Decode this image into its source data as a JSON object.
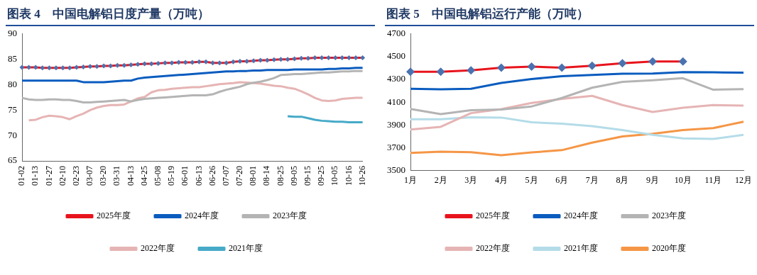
{
  "chart_data": [
    {
      "type": "line",
      "title": "图表 4　中国电解铝日度产量（万吨）",
      "categories": [
        "01-02",
        null,
        "01-13",
        null,
        "01-27",
        null,
        "02-10",
        null,
        "02-23",
        null,
        "03-07",
        null,
        "03-20",
        null,
        "03-31",
        null,
        "04-13",
        null,
        "04-25",
        null,
        "05-08",
        null,
        "05-19",
        null,
        "06-01",
        null,
        "06-13",
        null,
        "06-26",
        null,
        "07-07",
        null,
        "07-20",
        null,
        "08-01",
        null,
        "08-14",
        null,
        "08-25",
        null,
        "09-05",
        null,
        "09-15",
        null,
        "09-25",
        null,
        "10-05",
        null,
        "10-16",
        null,
        "10-26"
      ],
      "series": [
        {
          "name": "2025年度",
          "color": "#e8141c",
          "marker": "diamond",
          "colors": [
            "#4a72b0",
            "#4a72b0",
            "#4a72b0",
            "#4a72b0",
            "#4a72b0",
            "#4a72b0",
            "#4a72b0",
            "#4a72b0",
            "#4a72b0",
            "#4a72b0",
            "#4a72b0",
            "#4a72b0",
            "#4a72b0",
            "#4a72b0",
            "#4a72b0",
            "#4a72b0",
            "#4a72b0",
            "#4a72b0",
            "#4a72b0",
            "#4a72b0",
            "#4a72b0",
            "#4a72b0",
            "#4a72b0",
            "#4a72b0",
            "#4a72b0",
            "#4a72b0",
            "#4a72b0",
            "#4a72b0",
            "#4a72b0",
            "#4a72b0",
            "#4a72b0",
            "#4a72b0",
            "#4a72b0",
            "#4a72b0",
            "#4a72b0",
            "#4a72b0",
            "#4a72b0",
            "#4a72b0",
            "#4a72b0",
            "#4a72b0",
            "#4a72b0",
            "#4a72b0",
            "#4a72b0",
            "#4a72b0",
            "#4a72b0",
            "#4a72b0",
            "#4a72b0",
            "#4a72b0",
            "#4a72b0",
            "#4a72b0",
            "#4a72b0"
          ],
          "values": [
            83.4,
            83.4,
            83.4,
            83.3,
            83.3,
            83.3,
            83.3,
            83.3,
            83.4,
            83.5,
            83.6,
            83.6,
            83.7,
            83.7,
            83.8,
            83.8,
            83.9,
            84.0,
            84.1,
            84.1,
            84.2,
            84.3,
            84.3,
            84.4,
            84.4,
            84.4,
            84.5,
            84.5,
            84.3,
            84.3,
            84.3,
            84.5,
            84.6,
            84.6,
            84.7,
            84.8,
            84.8,
            84.9,
            85.0,
            85.0,
            85.1,
            85.2,
            85.2,
            85.3,
            85.3,
            85.3,
            85.3,
            85.3,
            85.3,
            85.3,
            85.3
          ]
        },
        {
          "name": "2024年度",
          "color": "#0a5cbf",
          "values": [
            80.8,
            80.8,
            80.8,
            80.8,
            80.8,
            80.8,
            80.8,
            80.8,
            80.8,
            80.5,
            80.5,
            80.5,
            80.5,
            80.6,
            80.7,
            80.8,
            80.8,
            81.2,
            81.4,
            81.5,
            81.6,
            81.7,
            81.8,
            81.9,
            82.0,
            82.1,
            82.2,
            82.3,
            82.4,
            82.5,
            82.6,
            82.6,
            82.7,
            82.7,
            82.8,
            82.8,
            82.9,
            82.9,
            82.9,
            82.9,
            83.0,
            83.0,
            83.0,
            83.0,
            83.0,
            83.1,
            83.1,
            83.2,
            83.2,
            83.3,
            83.3
          ]
        },
        {
          "name": "2023年度",
          "color": "#b4b4b4",
          "values": [
            77.4,
            77.1,
            77.0,
            77.0,
            77.1,
            77.1,
            77.0,
            77.0,
            76.8,
            76.5,
            76.5,
            76.6,
            76.7,
            76.8,
            76.9,
            77.0,
            76.7,
            77.0,
            77.2,
            77.3,
            77.4,
            77.5,
            77.6,
            77.7,
            77.8,
            77.9,
            77.9,
            77.9,
            78.1,
            78.6,
            79.0,
            79.3,
            79.6,
            80.1,
            80.4,
            80.6,
            80.9,
            81.3,
            81.9,
            82.0,
            82.1,
            82.1,
            82.2,
            82.3,
            82.4,
            82.4,
            82.5,
            82.6,
            82.6,
            82.7,
            82.7
          ]
        },
        {
          "name": "2022年度",
          "color": "#e6b4b4",
          "values": [
            null,
            73.0,
            73.1,
            73.6,
            73.9,
            73.8,
            73.6,
            73.2,
            73.8,
            74.3,
            75.0,
            75.5,
            75.8,
            76.0,
            76.0,
            76.1,
            76.7,
            77.3,
            77.6,
            78.5,
            78.9,
            79.0,
            79.2,
            79.3,
            79.4,
            79.5,
            79.5,
            79.7,
            79.9,
            80.1,
            80.2,
            80.3,
            80.5,
            80.4,
            80.3,
            80.2,
            80.0,
            79.8,
            79.7,
            79.4,
            79.2,
            78.7,
            78.1,
            77.4,
            76.9,
            76.8,
            76.9,
            77.2,
            77.3,
            77.4,
            77.4
          ]
        },
        {
          "name": "2021年度",
          "color": "#46aac8",
          "values": [
            null,
            null,
            null,
            null,
            null,
            null,
            null,
            null,
            null,
            null,
            null,
            null,
            null,
            null,
            null,
            null,
            null,
            null,
            null,
            null,
            null,
            null,
            null,
            null,
            null,
            null,
            null,
            null,
            null,
            null,
            null,
            null,
            null,
            null,
            null,
            null,
            null,
            null,
            null,
            73.8,
            73.7,
            73.7,
            73.4,
            73.1,
            72.9,
            72.8,
            72.7,
            72.7,
            72.6,
            72.6,
            72.6
          ]
        }
      ],
      "ylim": [
        65,
        90
      ],
      "yticks": [
        65,
        70,
        75,
        80,
        85,
        90
      ],
      "grid": false,
      "legend": "bottom"
    },
    {
      "type": "line",
      "title": "图表 5　中国电解铝运行产能（万吨）",
      "categories": [
        "1月",
        "2月",
        "3月",
        "4月",
        "5月",
        "6月",
        "7月",
        "8月",
        "9月",
        "10月",
        "11月",
        "12月"
      ],
      "series": [
        {
          "name": "2025年度",
          "color": "#e8141c",
          "marker": "diamond",
          "colors": [
            "#4a72b0",
            "#4a72b0",
            "#4a72b0",
            "#4a72b0",
            "#4a72b0",
            "#4a72b0",
            "#4a72b0",
            "#4a72b0",
            "#4a72b0",
            "#4a72b0",
            "#4a72b0",
            "#4a72b0"
          ],
          "values": [
            4367,
            4368,
            4380,
            4403,
            4412,
            4403,
            4420,
            4442,
            4458,
            4458,
            null,
            null
          ]
        },
        {
          "name": "2024年度",
          "color": "#0a5cbf",
          "values": [
            4218,
            4213,
            4218,
            4269,
            4303,
            4328,
            4340,
            4350,
            4352,
            4364,
            4362,
            4360
          ]
        },
        {
          "name": "2023年度",
          "color": "#b4b4b4",
          "values": [
            4041,
            3995,
            4029,
            4036,
            4063,
            4137,
            4227,
            4279,
            4293,
            4311,
            4210,
            4215
          ]
        },
        {
          "name": "2022年度",
          "color": "#e6b4b4",
          "values": [
            3860,
            3884,
            4004,
            4039,
            4093,
            4129,
            4156,
            4075,
            4014,
            4051,
            4075,
            4070
          ]
        },
        {
          "name": "2021年度",
          "color": "#b4dce8",
          "values": [
            3951,
            3951,
            3968,
            3965,
            3924,
            3911,
            3889,
            3855,
            3813,
            3782,
            3777,
            3813
          ]
        },
        {
          "name": "2020年度",
          "color": "#f59646",
          "values": [
            3654,
            3666,
            3661,
            3635,
            3659,
            3679,
            3745,
            3799,
            3823,
            3855,
            3872,
            3929
          ]
        }
      ],
      "ylim": [
        3500,
        4700
      ],
      "yticks": [
        3500,
        3700,
        3900,
        4100,
        4300,
        4500,
        4700
      ],
      "grid": false,
      "legend": "bottom"
    }
  ]
}
